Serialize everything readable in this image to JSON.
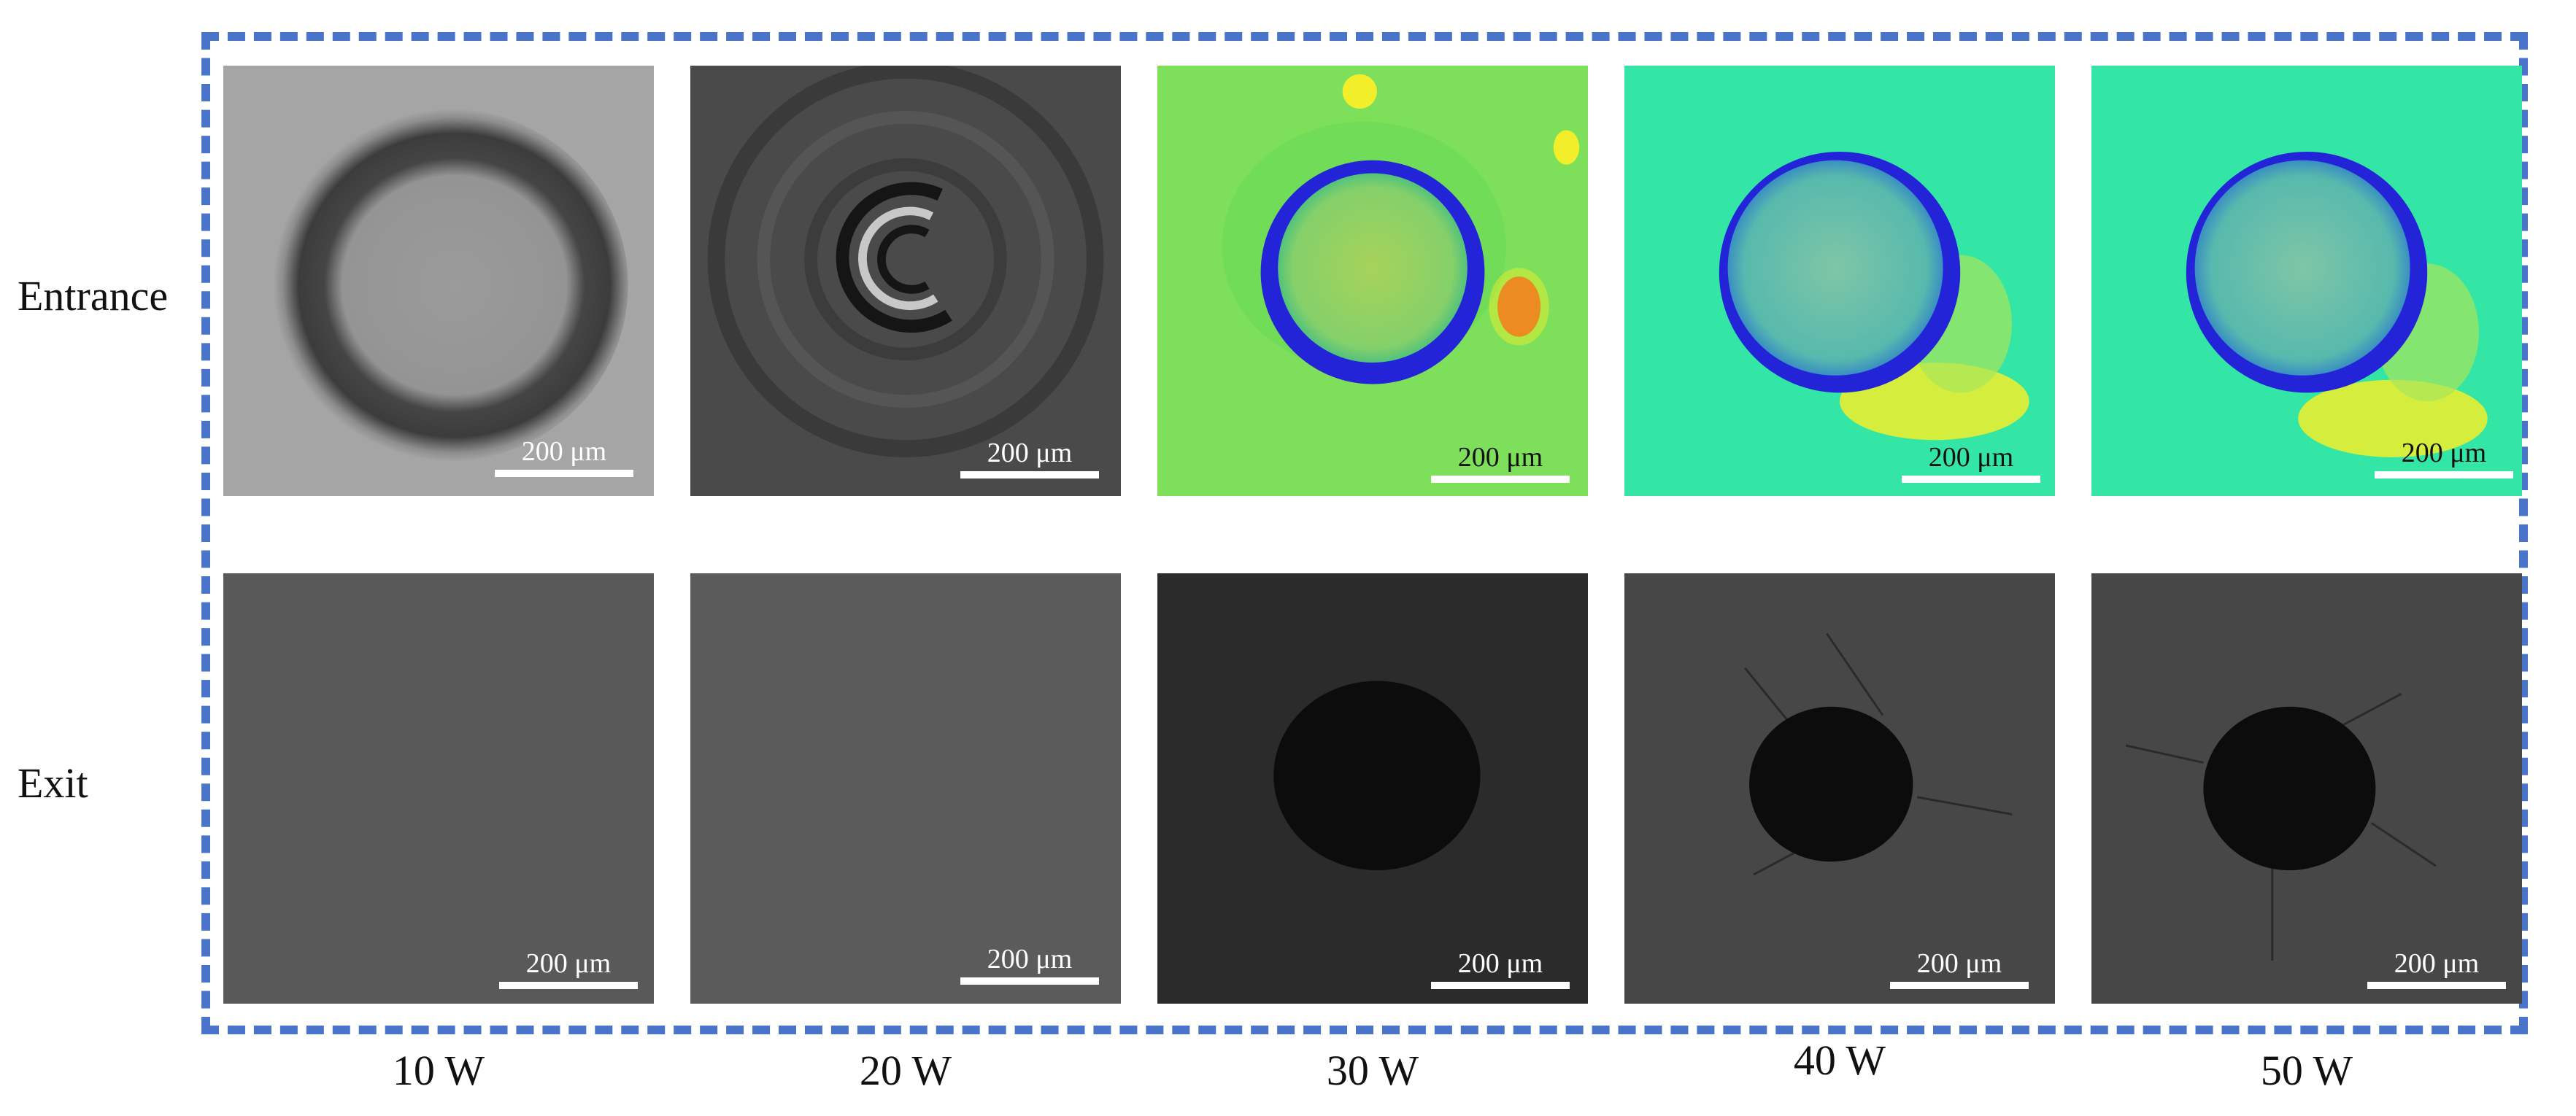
{
  "rows": {
    "entrance": "Entrance",
    "exit": "Exit"
  },
  "columns": [
    "10 W",
    "20 W",
    "30 W",
    "40 W",
    "50 W"
  ],
  "scale_label": "200 μm",
  "colors": {
    "frame": "#4a74c9",
    "heatmap_green": "#7ee05a",
    "heatmap_cyan": "#33e6a5",
    "heatmap_blue": "#2323d8",
    "heatmap_yellow": "#f2ef2a",
    "heatmap_red": "#e63a1a",
    "sem_gray": "#5a5a5a",
    "hole_black": "#0c0c0c"
  }
}
